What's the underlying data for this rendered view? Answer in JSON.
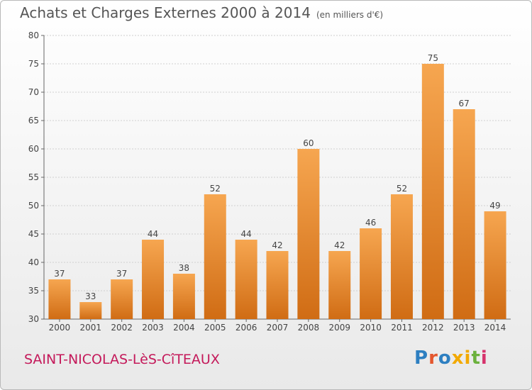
{
  "header": {
    "title": "Achats et Charges Externes 2000 à 2014",
    "unit": "(en milliers d'€)"
  },
  "footer": {
    "place": "SAINT-NICOLAS-LèS-CîTEAUX",
    "brand": "Proxiti",
    "brand_colors": [
      "#2d7fc1",
      "#e4572e",
      "#2d7fc1",
      "#f2a900",
      "#f2a900",
      "#6bb13d",
      "#d6336c"
    ]
  },
  "chart_data": {
    "type": "bar",
    "title": "Achats et Charges Externes 2000 à 2014",
    "subtitle": "(en milliers d'€)",
    "categories": [
      "2000",
      "2001",
      "2002",
      "2003",
      "2004",
      "2005",
      "2006",
      "2007",
      "2008",
      "2009",
      "2010",
      "2011",
      "2012",
      "2013",
      "2014"
    ],
    "values": [
      37,
      33,
      37,
      44,
      38,
      52,
      44,
      42,
      60,
      42,
      46,
      52,
      75,
      67,
      49
    ],
    "ylim": [
      30,
      80
    ],
    "yticks": [
      30,
      35,
      40,
      45,
      50,
      55,
      60,
      65,
      70,
      75,
      80
    ],
    "grid": true,
    "bar_color": "#f29432",
    "bar_color_dark": "#d4711a",
    "data_labels": true
  }
}
